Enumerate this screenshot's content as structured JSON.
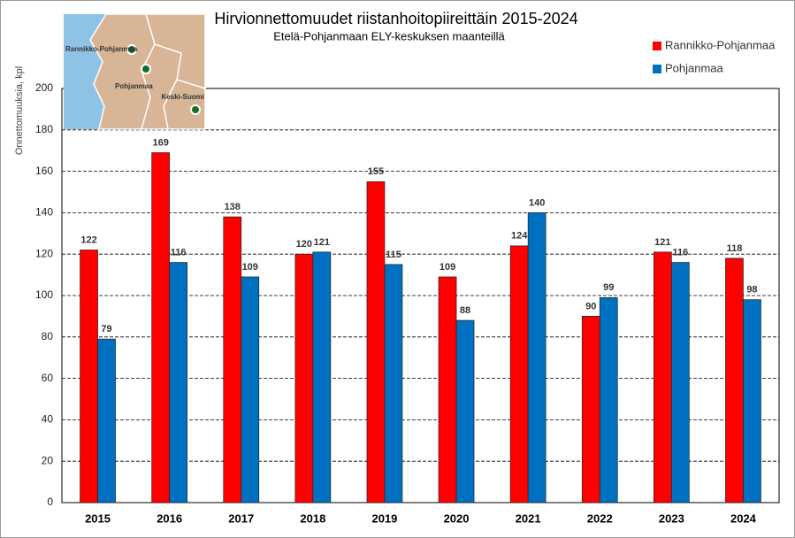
{
  "chart_data": {
    "type": "bar",
    "title": "Hirvionnettomuudet riistanhoitopiireittäin 2015-2024",
    "subtitle": "Etelä-Pohjanmaan ELY-keskuksen maanteillä",
    "ylabel": "Onnettomuuksia, kpl",
    "inset_labels": [
      "Rannikko-Pohjanmaa",
      "Pohjanmaa",
      "Keski-Suomi"
    ],
    "categories": [
      "2015",
      "2016",
      "2017",
      "2018",
      "2019",
      "2020",
      "2021",
      "2022",
      "2023",
      "2024"
    ],
    "series": [
      {
        "name": "Rannikko-Pohjanmaa",
        "color": "#ff0000",
        "values": [
          122,
          169,
          138,
          120,
          155,
          109,
          124,
          90,
          121,
          118
        ]
      },
      {
        "name": "Pohjanmaa",
        "color": "#0070c0",
        "values": [
          79,
          116,
          109,
          121,
          115,
          88,
          140,
          99,
          116,
          98
        ]
      }
    ],
    "ylim": [
      0,
      200
    ],
    "yticks": [
      0,
      20,
      40,
      60,
      80,
      100,
      120,
      140,
      160,
      180,
      200
    ],
    "grid": true,
    "legend": "upper right"
  }
}
